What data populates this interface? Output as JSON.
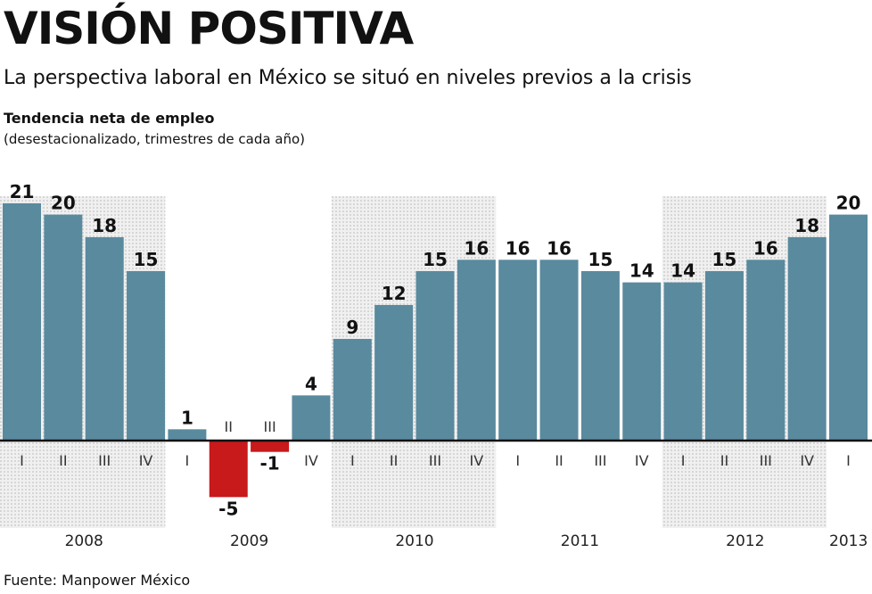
{
  "title": "VISIÓN POSITIVA",
  "subtitle": "La perspectiva laboral en México se situó en niveles previos a la crisis",
  "source": "Fuente: Manpower México",
  "colors": {
    "positive": "#5a8a9e",
    "negative": "#c8191b",
    "shade": "#e2e2e2"
  },
  "chart_data": {
    "type": "bar",
    "title": "VISIÓN POSITIVA",
    "ylabel": "Tendencia neta de empleo",
    "note": "(desestacionalizado, trimestres de cada año)",
    "categories": [
      "I",
      "II",
      "III",
      "IV",
      "I",
      "II",
      "III",
      "IV",
      "I",
      "II",
      "III",
      "IV",
      "I",
      "II",
      "III",
      "IV",
      "I",
      "II",
      "III",
      "IV",
      "I"
    ],
    "years": [
      {
        "label": "2008",
        "start": 0,
        "count": 4,
        "shaded": true
      },
      {
        "label": "2009",
        "start": 4,
        "count": 4,
        "shaded": false
      },
      {
        "label": "2010",
        "start": 8,
        "count": 4,
        "shaded": true
      },
      {
        "label": "2011",
        "start": 12,
        "count": 4,
        "shaded": false
      },
      {
        "label": "2012",
        "start": 16,
        "count": 4,
        "shaded": true
      },
      {
        "label": "2013",
        "start": 20,
        "count": 1,
        "shaded": false
      }
    ],
    "values": [
      21,
      20,
      18,
      15,
      1,
      -5,
      -1,
      4,
      9,
      12,
      15,
      16,
      16,
      16,
      15,
      14,
      14,
      15,
      16,
      18,
      20
    ],
    "value_labels": [
      "21",
      "20",
      "18",
      "15",
      "1",
      "-5",
      "-1",
      "4",
      "9",
      "12",
      "15",
      "16",
      "16",
      "16",
      "15",
      "14",
      "14",
      "15",
      "16",
      "18",
      "20"
    ],
    "ylim": [
      -5,
      21
    ],
    "grid": false
  }
}
